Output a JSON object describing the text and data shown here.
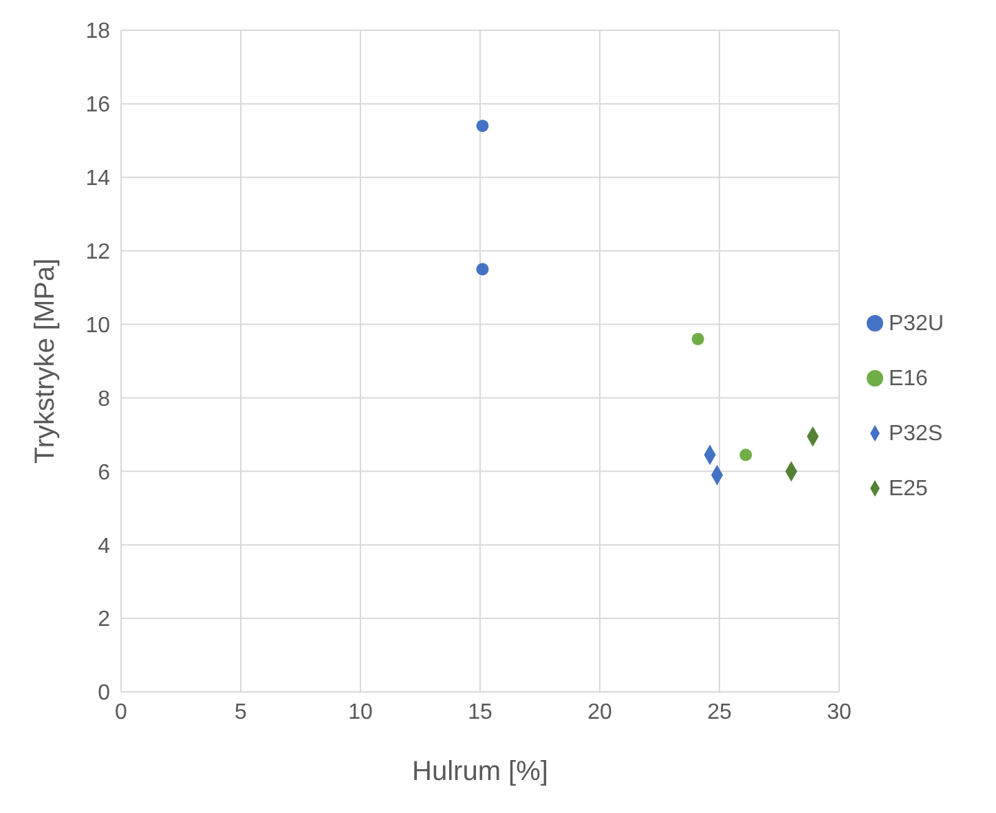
{
  "chart_data": {
    "type": "scatter",
    "xlabel": "Hulrum [%]",
    "ylabel": "Trykstryke [MPa]",
    "xlim": [
      0,
      30
    ],
    "xticks": [
      0,
      5,
      10,
      15,
      20,
      25,
      30
    ],
    "ylim": [
      0,
      18
    ],
    "yticks": [
      0,
      2,
      4,
      6,
      8,
      10,
      12,
      14,
      16,
      18
    ],
    "grid": true,
    "legend": "right",
    "series": [
      {
        "name": "P32U",
        "color": "#4472c4",
        "marker": "circle",
        "x": [
          15.1,
          15.1
        ],
        "values": [
          15.4,
          11.5
        ]
      },
      {
        "name": "E16",
        "color": "#70ad47",
        "marker": "circle",
        "x": [
          24.1,
          26.1
        ],
        "values": [
          9.6,
          6.45
        ]
      },
      {
        "name": "P32S",
        "color": "#4472c4",
        "marker": "diamond",
        "x": [
          24.6,
          24.9
        ],
        "values": [
          6.45,
          5.9
        ]
      },
      {
        "name": "E25",
        "color": "#548235",
        "marker": "diamond",
        "x": [
          28.9,
          28.0
        ],
        "values": [
          6.95,
          6.0
        ]
      }
    ]
  }
}
